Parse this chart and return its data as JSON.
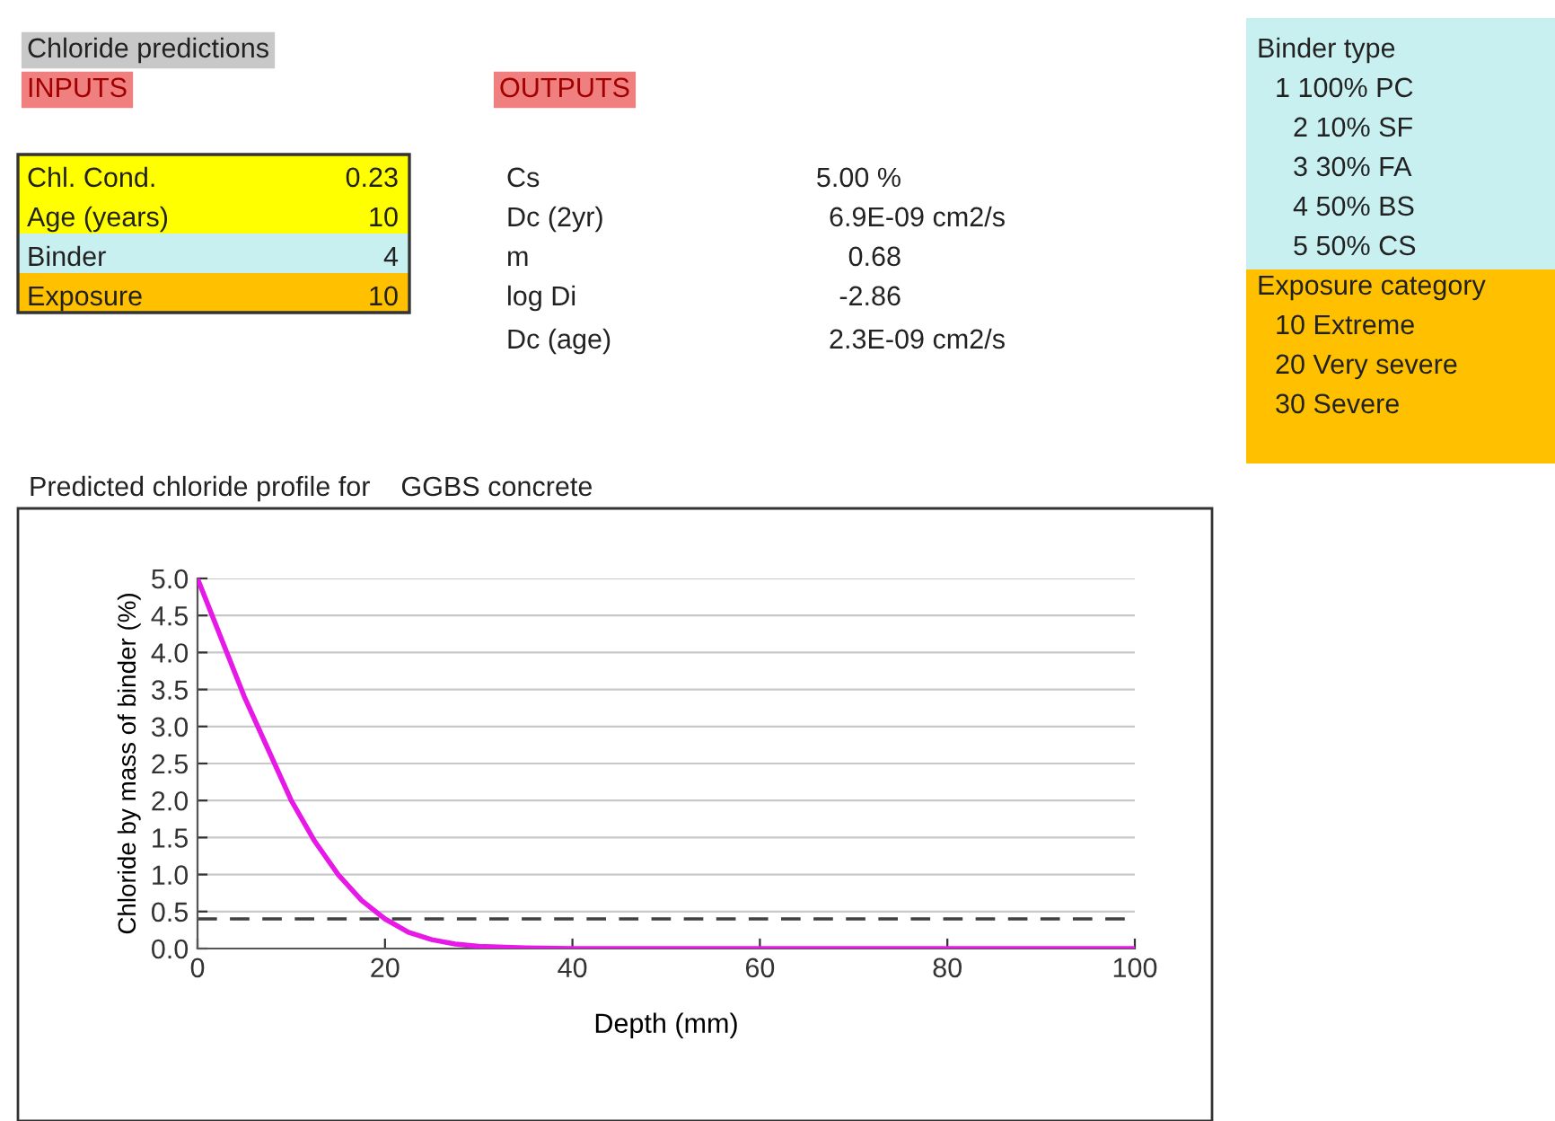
{
  "chart_data": [
    {
      "type": "line",
      "title": "Predicted chloride profile for    GGBS concrete",
      "xlabel": "Depth (mm)",
      "ylabel": "Chloride by mass of binder (%)",
      "series": [
        {
          "color": "#e619e6",
          "x": [
            0,
            2.5,
            5,
            7.5,
            10,
            12.5,
            15,
            17.5,
            20,
            22.5,
            25,
            27.5,
            30,
            35,
            40,
            50,
            60,
            80,
            100
          ],
          "values": [
            5.0,
            4.2,
            3.4,
            2.7,
            2.0,
            1.45,
            1.0,
            0.65,
            0.4,
            0.22,
            0.12,
            0.06,
            0.03,
            0.01,
            0,
            0,
            0,
            0,
            0
          ]
        }
      ],
      "xlim": [
        0,
        100
      ],
      "xticks": [
        0,
        20,
        40,
        60,
        80,
        100
      ],
      "ylim": [
        0,
        5
      ],
      "yticks": [
        {
          "value": 0,
          "label": "0.0"
        },
        {
          "value": 0.5,
          "label": "0.5"
        },
        {
          "value": 1,
          "label": "1.0"
        },
        {
          "value": 1.5,
          "label": "1.5"
        },
        {
          "value": 2,
          "label": "2.0"
        },
        {
          "value": 2.5,
          "label": "2.5"
        },
        {
          "value": 3,
          "label": "3.0"
        },
        {
          "value": 3.5,
          "label": "3.5"
        },
        {
          "value": 4,
          "label": "4.0"
        },
        {
          "value": 4.5,
          "label": "4.5"
        },
        {
          "value": 5,
          "label": "5.0"
        }
      ],
      "ref_lines": [
        {
          "axis": "y",
          "value": 0.4,
          "color": "#404040",
          "line_style": "dashed"
        }
      ],
      "grid": "y",
      "legend": false
    },
    {
      "type": "other",
      "annotations": [
        "Chloride predictions",
        "INPUTS",
        "OUTPUTS",
        "Chl. Cond.",
        "0.23",
        "Age (years)",
        "10",
        "Binder",
        "4",
        "Exposure",
        "10",
        "Cs",
        "5.00 %",
        "Dc (2yr)",
        "6.9E-09 cm2/s",
        "m",
        "0.68",
        "log Di",
        "-2.86",
        "Dc (age)",
        "2.3E-09 cm2/s",
        "Binder type",
        "1 100% PC",
        "2 10% SF",
        "3 30% FA",
        "4 50% BS",
        "5 50% CS",
        "Exposure category",
        "10 Extreme",
        "20 Very severe",
        "30 Severe"
      ]
    }
  ]
}
